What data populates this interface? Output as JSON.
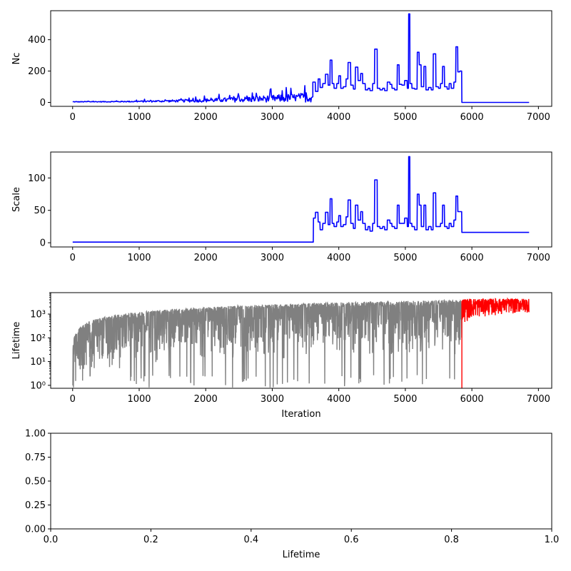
{
  "chart_data": [
    {
      "type": "line",
      "xlabel": "",
      "ylabel": "Nc",
      "xlim": [
        -330,
        7200
      ],
      "ylim": [
        -25,
        585
      ],
      "xticks": [
        0,
        1000,
        2000,
        3000,
        4000,
        5000,
        6000,
        7000
      ],
      "yticks": [
        0,
        200,
        400
      ],
      "series": [
        {
          "color": "#0000ff",
          "segments": [
            {
              "kind": "noise",
              "x_start": 0,
              "x_end": 3610,
              "step": 10,
              "base": 2,
              "amp_start": 6,
              "amp_end": 90
            },
            {
              "kind": "steps",
              "points": [
                [
                  3610,
                  130
                ],
                [
                  3650,
                  70
                ],
                [
                  3690,
                  150
                ],
                [
                  3720,
                  95
                ],
                [
                  3760,
                  120
                ],
                [
                  3800,
                  180
                ],
                [
                  3840,
                  110
                ],
                [
                  3870,
                  270
                ],
                [
                  3900,
                  120
                ],
                [
                  3930,
                  90
                ],
                [
                  3970,
                  120
                ],
                [
                  4000,
                  170
                ],
                [
                  4030,
                  90
                ],
                [
                  4070,
                  100
                ],
                [
                  4110,
                  150
                ],
                [
                  4140,
                  255
                ],
                [
                  4180,
                  110
                ],
                [
                  4220,
                  85
                ],
                [
                  4250,
                  225
                ],
                [
                  4290,
                  140
                ],
                [
                  4330,
                  185
                ],
                [
                  4360,
                  120
                ],
                [
                  4400,
                  80
                ],
                [
                  4440,
                  90
                ],
                [
                  4470,
                  75
                ],
                [
                  4510,
                  120
                ],
                [
                  4540,
                  340
                ],
                [
                  4580,
                  90
                ],
                [
                  4620,
                  80
                ],
                [
                  4660,
                  90
                ],
                [
                  4690,
                  75
                ],
                [
                  4730,
                  130
                ],
                [
                  4770,
                  115
                ],
                [
                  4800,
                  90
                ],
                [
                  4840,
                  80
                ],
                [
                  4880,
                  240
                ],
                [
                  4910,
                  115
                ],
                [
                  4950,
                  110
                ],
                [
                  4990,
                  140
                ],
                [
                  5030,
                  90
                ],
                [
                  5050,
                  565
                ],
                [
                  5070,
                  120
                ],
                [
                  5100,
                  90
                ],
                [
                  5140,
                  85
                ],
                [
                  5180,
                  320
                ],
                [
                  5210,
                  240
                ],
                [
                  5240,
                  100
                ],
                [
                  5280,
                  230
                ],
                [
                  5310,
                  80
                ],
                [
                  5350,
                  95
                ],
                [
                  5390,
                  80
                ],
                [
                  5420,
                  310
                ],
                [
                  5460,
                  100
                ],
                [
                  5500,
                  90
                ],
                [
                  5530,
                  120
                ],
                [
                  5560,
                  230
                ],
                [
                  5590,
                  100
                ],
                [
                  5630,
                  85
                ],
                [
                  5660,
                  120
                ],
                [
                  5690,
                  90
                ],
                [
                  5730,
                  130
                ],
                [
                  5760,
                  355
                ],
                [
                  5790,
                  195
                ],
                [
                  5820,
                  200
                ],
                [
                  5850,
                  0
                ],
                [
                  6860,
                  0
                ]
              ]
            }
          ]
        }
      ]
    },
    {
      "type": "line",
      "xlabel": "",
      "ylabel": "Scale",
      "xlim": [
        -330,
        7200
      ],
      "ylim": [
        -6.5,
        140
      ],
      "xticks": [
        0,
        1000,
        2000,
        3000,
        4000,
        5000,
        6000,
        7000
      ],
      "yticks": [
        0,
        50,
        100
      ],
      "series": [
        {
          "color": "#0000ff",
          "segments": [
            {
              "kind": "steps",
              "points": [
                [
                  0,
                  1
                ],
                [
                  3610,
                  1
                ],
                [
                  3620,
                  38
                ],
                [
                  3650,
                  47
                ],
                [
                  3690,
                  32
                ],
                [
                  3720,
                  20
                ],
                [
                  3760,
                  30
                ],
                [
                  3800,
                  47
                ],
                [
                  3840,
                  28
                ],
                [
                  3870,
                  68
                ],
                [
                  3900,
                  30
                ],
                [
                  3930,
                  25
                ],
                [
                  3970,
                  32
                ],
                [
                  4000,
                  42
                ],
                [
                  4030,
                  25
                ],
                [
                  4070,
                  28
                ],
                [
                  4110,
                  40
                ],
                [
                  4140,
                  66
                ],
                [
                  4180,
                  30
                ],
                [
                  4220,
                  22
                ],
                [
                  4250,
                  58
                ],
                [
                  4290,
                  35
                ],
                [
                  4330,
                  48
                ],
                [
                  4360,
                  30
                ],
                [
                  4400,
                  20
                ],
                [
                  4440,
                  25
                ],
                [
                  4470,
                  18
                ],
                [
                  4510,
                  30
                ],
                [
                  4540,
                  97
                ],
                [
                  4580,
                  25
                ],
                [
                  4620,
                  22
                ],
                [
                  4660,
                  25
                ],
                [
                  4690,
                  20
                ],
                [
                  4730,
                  35
                ],
                [
                  4770,
                  30
                ],
                [
                  4800,
                  25
                ],
                [
                  4840,
                  22
                ],
                [
                  4880,
                  58
                ],
                [
                  4910,
                  30
                ],
                [
                  4950,
                  30
                ],
                [
                  4990,
                  38
                ],
                [
                  5030,
                  25
                ],
                [
                  5050,
                  133
                ],
                [
                  5070,
                  30
                ],
                [
                  5100,
                  25
                ],
                [
                  5140,
                  20
                ],
                [
                  5180,
                  75
                ],
                [
                  5210,
                  58
                ],
                [
                  5240,
                  25
                ],
                [
                  5280,
                  58
                ],
                [
                  5310,
                  20
                ],
                [
                  5350,
                  25
                ],
                [
                  5390,
                  20
                ],
                [
                  5420,
                  77
                ],
                [
                  5460,
                  25
                ],
                [
                  5500,
                  25
                ],
                [
                  5530,
                  30
                ],
                [
                  5560,
                  58
                ],
                [
                  5590,
                  25
                ],
                [
                  5630,
                  22
                ],
                [
                  5660,
                  30
                ],
                [
                  5690,
                  25
                ],
                [
                  5730,
                  35
                ],
                [
                  5760,
                  72
                ],
                [
                  5790,
                  48
                ],
                [
                  5820,
                  48
                ],
                [
                  5850,
                  16
                ],
                [
                  6860,
                  16
                ]
              ]
            }
          ]
        }
      ]
    },
    {
      "type": "line",
      "xlabel": "Iteration",
      "ylabel": "Lifetime",
      "xlim": [
        -330,
        7200
      ],
      "ylim": [
        0.75,
        8000
      ],
      "yscale": "log",
      "xticks": [
        0,
        1000,
        2000,
        3000,
        4000,
        5000,
        6000,
        7000
      ],
      "yticks": [
        1,
        10,
        100,
        1000
      ],
      "yticklabels": [
        "10⁰",
        "10¹",
        "10²",
        "10³"
      ],
      "series": [
        {
          "color": "#808080",
          "kind": "lifetime",
          "x_start": 0,
          "x_end": 5850
        },
        {
          "color": "#ff0000",
          "kind": "lifetime-tail",
          "x_start": 5850,
          "x_end": 6860
        }
      ]
    },
    {
      "type": "line",
      "xlabel": "Lifetime",
      "ylabel": "",
      "xlim": [
        0,
        1
      ],
      "ylim": [
        0,
        1
      ],
      "xticks": [
        0,
        0.2,
        0.4,
        0.6,
        0.8,
        1.0
      ],
      "xticklabels": [
        "0.0",
        "0.2",
        "0.4",
        "0.6",
        "0.8",
        "1.0"
      ],
      "yticks": [
        0,
        0.25,
        0.5,
        0.75,
        1.0
      ],
      "yticklabels": [
        "0.00",
        "0.25",
        "0.50",
        "0.75",
        "1.00"
      ],
      "series": []
    }
  ]
}
